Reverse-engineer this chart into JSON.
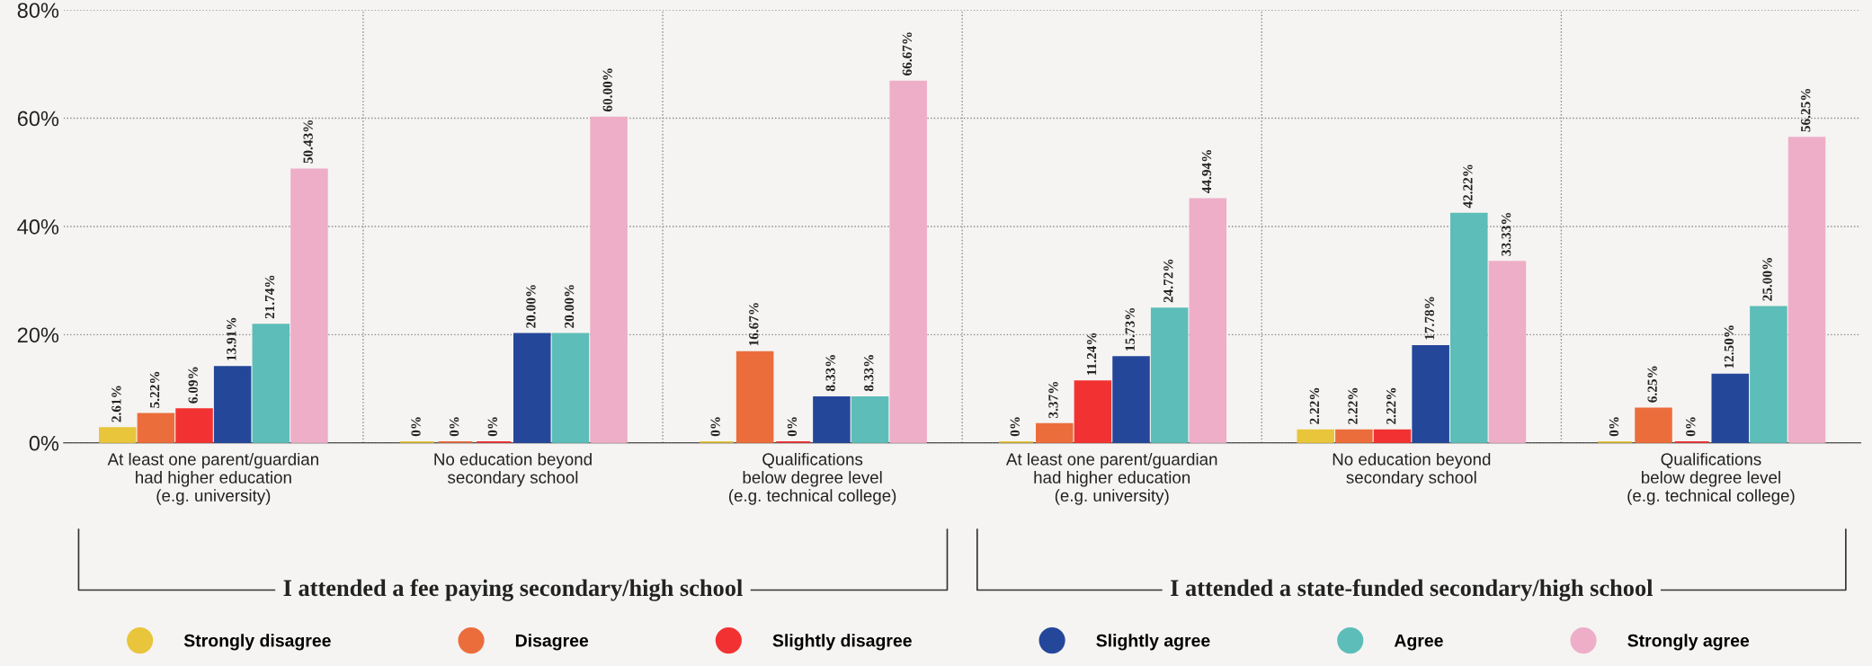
{
  "chart_data": {
    "type": "bar",
    "categories": [
      "At least one parent/guardian\nhad higher education\n(e.g. university)",
      "No education beyond\nsecondary school",
      "Qualifications\nbelow degree level\n(e.g. technical college)",
      "At least one parent/guardian\nhad higher education\n(e.g. university)",
      "No education beyond\nsecondary school",
      "Qualifications\nbelow degree level\n(e.g. technical college)"
    ],
    "series": [
      {
        "name": "Strongly disagree",
        "color": "#e8c53a",
        "values": [
          2.61,
          0,
          0,
          0,
          2.22,
          0
        ],
        "value_labels": [
          "2.61%",
          "0%",
          "0%",
          "0%",
          "2.22%",
          "0%"
        ]
      },
      {
        "name": "Disagree",
        "color": "#ec6d3c",
        "values": [
          5.22,
          0,
          16.67,
          3.37,
          2.22,
          6.25
        ],
        "value_labels": [
          "5.22%",
          "0%",
          "16.67%",
          "3.37%",
          "2.22%",
          "6.25%"
        ]
      },
      {
        "name": "Slightly disagree",
        "color": "#f23232",
        "values": [
          6.09,
          0,
          0,
          11.24,
          2.22,
          0
        ],
        "value_labels": [
          "6.09%",
          "0%",
          "0%",
          "11.24%",
          "2.22%",
          "0%"
        ]
      },
      {
        "name": "Slightly agree",
        "color": "#25479a",
        "values": [
          13.91,
          20.0,
          8.33,
          15.73,
          17.78,
          12.5
        ],
        "value_labels": [
          "13.91%",
          "20.00%",
          "8.33%",
          "15.73%",
          "17.78%",
          "12.50%"
        ]
      },
      {
        "name": "Agree",
        "color": "#5dbdb8",
        "values": [
          21.74,
          20.0,
          8.33,
          24.72,
          42.22,
          25.0
        ],
        "value_labels": [
          "21.74%",
          "20.00%",
          "8.33%",
          "24.72%",
          "42.22%",
          "25.00%"
        ]
      },
      {
        "name": "Strongly agree",
        "color": "#eeaec8",
        "values": [
          50.43,
          60.0,
          66.67,
          44.94,
          33.33,
          56.25
        ],
        "value_labels": [
          "50.43%",
          "60.00%",
          "66.67%",
          "44.94%",
          "33.33%",
          "56.25%"
        ]
      }
    ],
    "ylim": [
      0,
      80
    ],
    "yticks": [
      {
        "value": 0,
        "label": "0%"
      },
      {
        "value": 20,
        "label": "20%"
      },
      {
        "value": 40,
        "label": "40%"
      },
      {
        "value": 60,
        "label": "60%"
      },
      {
        "value": 80,
        "label": "80%"
      }
    ],
    "annotations": [
      "I attended a fee paying secondary/high school",
      "I attended a state-funded secondary/high school"
    ],
    "grid": true,
    "legend": "bottom",
    "marker": "circle"
  }
}
